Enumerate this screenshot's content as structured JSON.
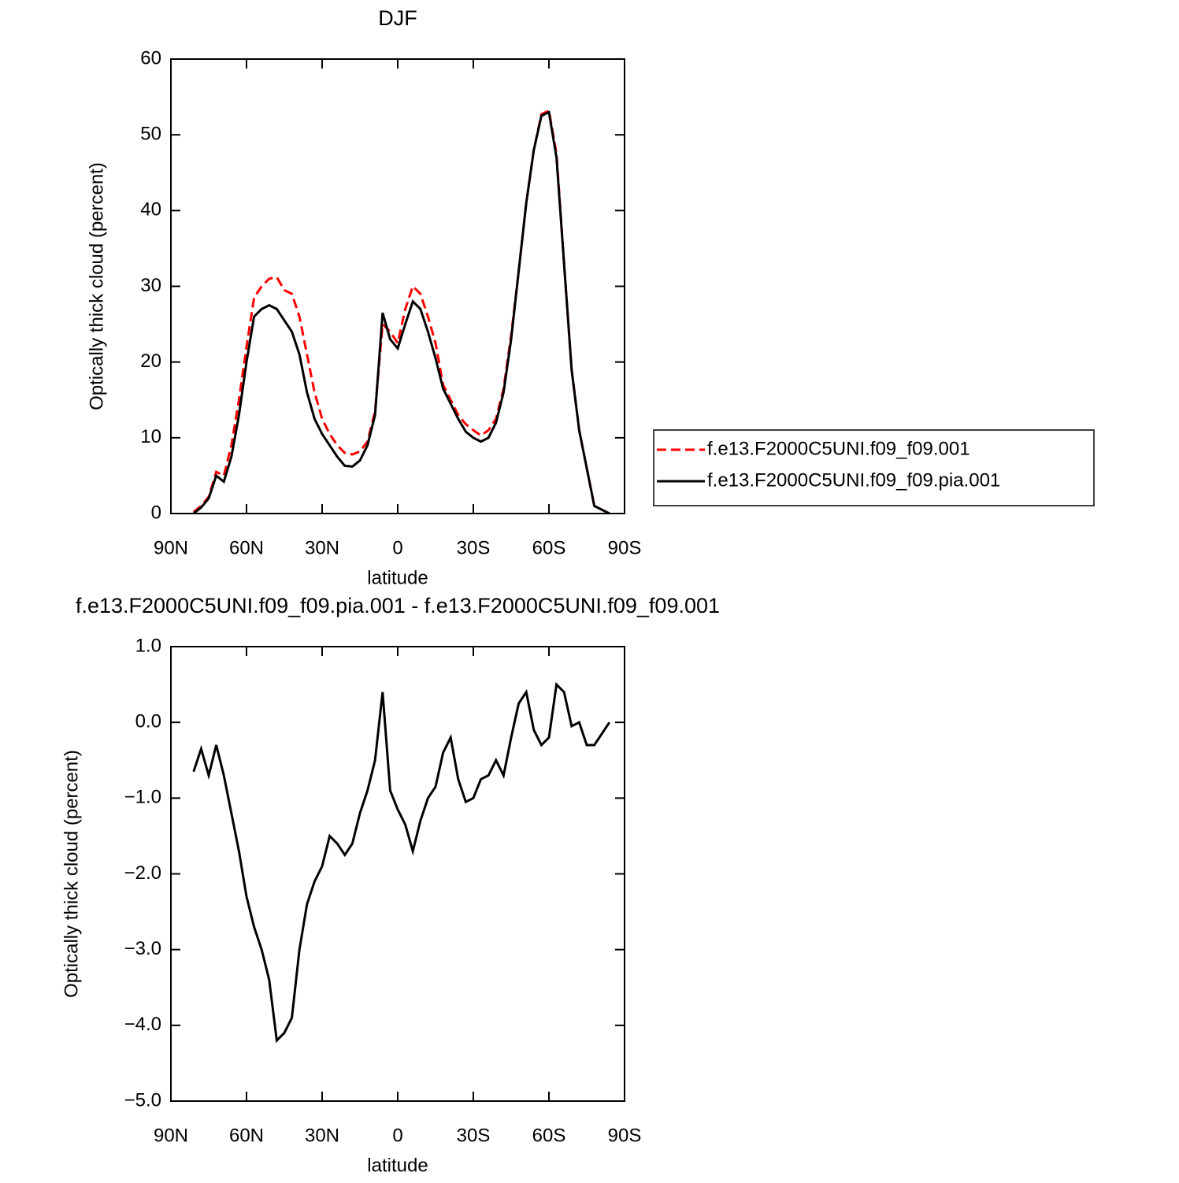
{
  "chart_data": [
    {
      "type": "line",
      "title": "DJF",
      "x_label": "latitude",
      "y_label": "Optically thick cloud (percent)",
      "x": [
        81,
        78,
        75,
        72,
        69,
        66,
        63,
        60,
        57,
        54,
        51,
        48,
        45,
        42,
        39,
        36,
        33,
        30,
        27,
        24,
        21,
        18,
        15,
        12,
        9,
        6,
        3,
        0,
        -3,
        -6,
        -9,
        -12,
        -15,
        -18,
        -21,
        -24,
        -27,
        -30,
        -33,
        -36,
        -39,
        -42,
        -45,
        -48,
        -51,
        -54,
        -57,
        -60,
        -63,
        -66,
        -69,
        -72,
        -75,
        -78,
        -81,
        -84
      ],
      "xlim": [
        90,
        -90
      ],
      "xticks": [
        {
          "value": 90,
          "label": "90N"
        },
        {
          "value": 60,
          "label": "60N"
        },
        {
          "value": 30,
          "label": "30N"
        },
        0,
        {
          "value": -30,
          "label": "30S"
        },
        {
          "value": -60,
          "label": "60S"
        },
        {
          "value": -90,
          "label": "90S"
        }
      ],
      "ylim": [
        0,
        60
      ],
      "yticks": [
        0,
        10,
        20,
        30,
        40,
        50,
        60
      ],
      "legend": "right",
      "series": [
        {
          "name": "f.e13.F2000C5UNI.f09_f09.001",
          "color": "#ff0000",
          "line_style": "dashed",
          "values": [
            0.2,
            1,
            2.2,
            5.5,
            5,
            9,
            15,
            22,
            28.5,
            30,
            31,
            31.2,
            29.5,
            29,
            26,
            21,
            16,
            12.5,
            10.5,
            9,
            8,
            7.8,
            8.2,
            9.5,
            13.5,
            25,
            24,
            22.5,
            27,
            30,
            29,
            26,
            22.5,
            17,
            15,
            13,
            11.8,
            11,
            10.3,
            11,
            12.5,
            16.5,
            23.5,
            32,
            41,
            48,
            52.7,
            53.2,
            47.5,
            33,
            19,
            11,
            6,
            1,
            0.5,
            0
          ]
        },
        {
          "name": "f.e13.F2000C5UNI.f09_f09.pia.001",
          "color": "#000000",
          "line_style": "solid",
          "values": [
            0,
            0.8,
            2,
            5,
            4.2,
            7.5,
            13,
            20,
            26,
            27,
            27.5,
            27,
            25.5,
            24,
            21,
            16,
            12.5,
            10.5,
            9,
            7.5,
            6.3,
            6.2,
            7,
            9,
            13,
            26.5,
            23,
            21.8,
            25,
            28,
            27,
            24,
            20.5,
            16.5,
            14.5,
            12.5,
            10.8,
            10,
            9.5,
            10,
            12,
            16,
            23,
            32,
            41,
            48,
            52.5,
            53,
            47,
            33,
            19,
            11,
            6,
            1,
            0.5,
            0
          ]
        }
      ]
    },
    {
      "type": "line",
      "title": "f.e13.F2000C5UNI.f09_f09.pia.001 - f.e13.F2000C5UNI.f09_f09.001",
      "x_label": "latitude",
      "y_label": "Optically thick cloud (percent)",
      "x": [
        81,
        78,
        75,
        72,
        69,
        66,
        63,
        60,
        57,
        54,
        51,
        48,
        45,
        42,
        39,
        36,
        33,
        30,
        27,
        24,
        21,
        18,
        15,
        12,
        9,
        6,
        3,
        0,
        -3,
        -6,
        -9,
        -12,
        -15,
        -18,
        -21,
        -24,
        -27,
        -30,
        -33,
        -36,
        -39,
        -42,
        -45,
        -48,
        -51,
        -54,
        -57,
        -60,
        -63,
        -66,
        -69,
        -72,
        -75,
        -78,
        -81,
        -84
      ],
      "xlim": [
        90,
        -90
      ],
      "xticks": [
        {
          "value": 90,
          "label": "90N"
        },
        {
          "value": 60,
          "label": "60N"
        },
        {
          "value": 30,
          "label": "30N"
        },
        0,
        {
          "value": -30,
          "label": "30S"
        },
        {
          "value": -60,
          "label": "60S"
        },
        {
          "value": -90,
          "label": "90S"
        }
      ],
      "ylim": [
        -5,
        1
      ],
      "yticks": [
        {
          "value": -5,
          "label": "−5.0"
        },
        {
          "value": -4,
          "label": "−4.0"
        },
        {
          "value": -3,
          "label": "−3.0"
        },
        {
          "value": -2,
          "label": "−2.0"
        },
        {
          "value": -1,
          "label": "−1.0"
        },
        {
          "value": 0,
          "label": "0.0"
        },
        {
          "value": 1,
          "label": "1.0"
        }
      ],
      "series": [
        {
          "color": "#000000",
          "line_style": "solid",
          "values": [
            -0.65,
            -0.35,
            -0.7,
            -0.3,
            -0.7,
            -1.2,
            -1.7,
            -2.3,
            -2.7,
            -3.0,
            -3.4,
            -4.2,
            -4.1,
            -3.9,
            -3.0,
            -2.4,
            -2.1,
            -1.9,
            -1.5,
            -1.6,
            -1.75,
            -1.6,
            -1.2,
            -0.9,
            -0.5,
            0.4,
            -0.9,
            -1.15,
            -1.35,
            -1.7,
            -1.3,
            -1.0,
            -0.85,
            -0.4,
            -0.2,
            -0.75,
            -1.05,
            -1.0,
            -0.75,
            -0.7,
            -0.5,
            -0.7,
            -0.2,
            0.25,
            0.4,
            -0.1,
            -0.3,
            -0.2,
            0.5,
            0.4,
            -0.05,
            0.0,
            -0.3,
            -0.3,
            -0.15,
            0.0
          ]
        }
      ]
    }
  ]
}
